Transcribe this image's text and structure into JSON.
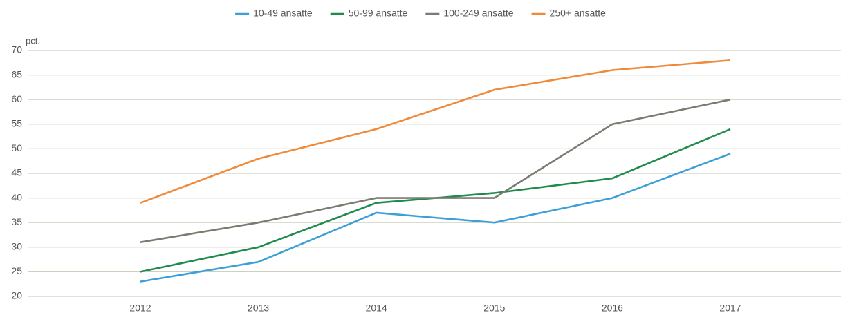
{
  "chart_data": {
    "type": "line",
    "y_unit_label": "pct.",
    "categories": [
      "2012",
      "2013",
      "2014",
      "2015",
      "2016",
      "2017"
    ],
    "series": [
      {
        "name": "10-49 ansatte",
        "color": "#3d9fd8",
        "values": [
          23,
          27,
          37,
          35,
          40,
          49
        ]
      },
      {
        "name": "50-99 ansatte",
        "color": "#1f8c4d",
        "values": [
          25,
          30,
          39,
          41,
          44,
          54
        ]
      },
      {
        "name": "100-249 ansatte",
        "color": "#7b7b72",
        "values": [
          31,
          35,
          40,
          40,
          55,
          60
        ]
      },
      {
        "name": "250+ ansatte",
        "color": "#ef8a3b",
        "values": [
          39,
          48,
          54,
          62,
          66,
          68
        ]
      }
    ],
    "ylim": [
      20,
      70
    ],
    "yticks": [
      20,
      25,
      30,
      35,
      40,
      45,
      50,
      55,
      60,
      65,
      70
    ],
    "grid": true,
    "legend": "top"
  }
}
